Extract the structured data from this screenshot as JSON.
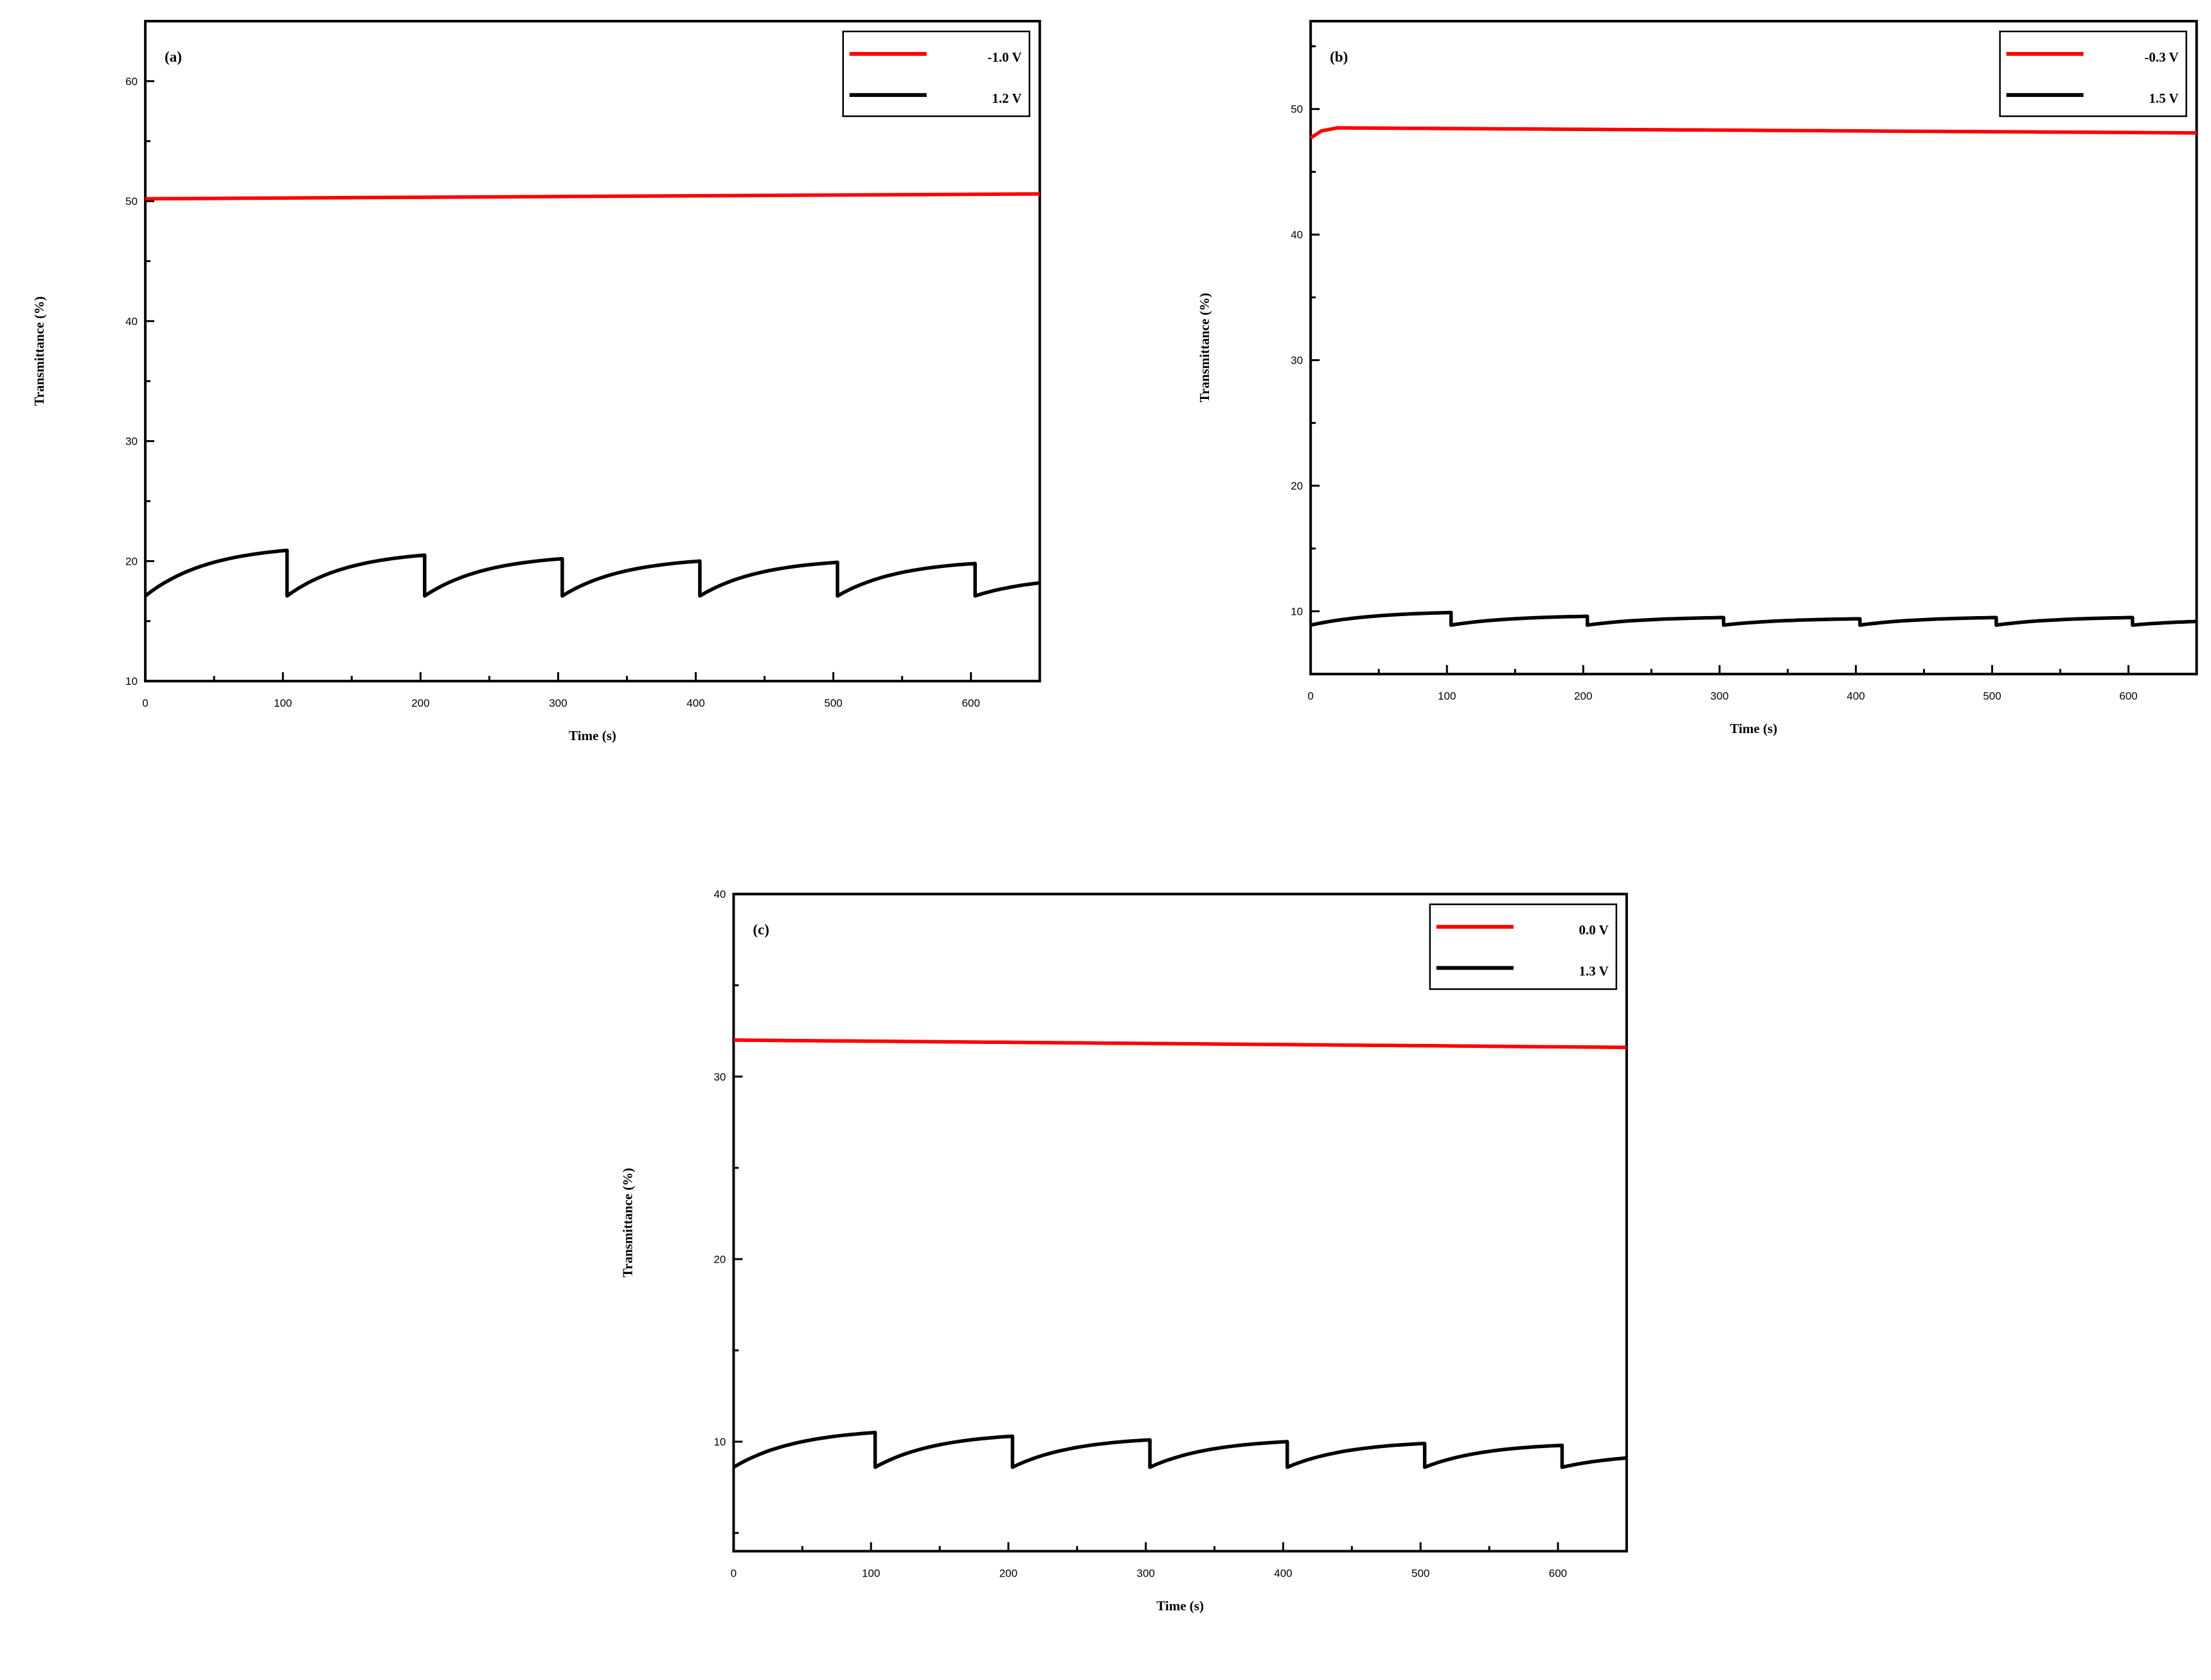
{
  "chart_data": [
    {
      "type": "line",
      "panel_label": "(a)",
      "xlabel": "Time (s)",
      "ylabel": "Transmittance (%)",
      "xlim": [
        0,
        650
      ],
      "ylim": [
        10,
        65
      ],
      "xticks": [
        "0",
        "100",
        "200",
        "300",
        "400",
        "500",
        "600"
      ],
      "yticks": [
        "10",
        "20",
        "30",
        "40",
        "50",
        "60"
      ],
      "legend_position": "top-right",
      "series": [
        {
          "name": "-1.0 V",
          "color": "#ff0000",
          "kind": "flat",
          "start": 50.2,
          "end": 50.6
        },
        {
          "name": "1.2 V",
          "color": "#000000",
          "kind": "sawtooth",
          "period": 100,
          "low": 17.1,
          "peaks": [
            20.9,
            20.5,
            20.2,
            20.0,
            19.9,
            19.8,
            18.6
          ]
        }
      ]
    },
    {
      "type": "line",
      "panel_label": "(b)",
      "xlabel": "Time (s)",
      "ylabel": "Transmittance (%)",
      "xlim": [
        0,
        650
      ],
      "ylim": [
        5,
        57
      ],
      "xticks": [
        "0",
        "100",
        "200",
        "300",
        "400",
        "500",
        "600"
      ],
      "yticks": [
        "10",
        "20",
        "30",
        "40",
        "50"
      ],
      "legend_position": "top-right",
      "series": [
        {
          "name": "-0.3 V",
          "color": "#ff0000",
          "kind": "plateau",
          "start": 47.7,
          "peak": 48.5,
          "end": 48.1
        },
        {
          "name": "1.5 V",
          "color": "#000000",
          "kind": "sawtooth",
          "period": 100,
          "low": 8.9,
          "peaks": [
            9.9,
            9.6,
            9.5,
            9.4,
            9.5,
            9.5,
            9.3
          ]
        }
      ]
    },
    {
      "type": "line",
      "panel_label": "(c)",
      "xlabel": "Time (s)",
      "ylabel": "Transmittance (%)",
      "xlim": [
        0,
        650
      ],
      "ylim": [
        4,
        40
      ],
      "xticks": [
        "0",
        "100",
        "200",
        "300",
        "400",
        "500",
        "600"
      ],
      "yticks": [
        "10",
        "20",
        "30",
        "40"
      ],
      "legend_position": "top-right",
      "series": [
        {
          "name": "0.0 V",
          "color": "#ff0000",
          "kind": "flat",
          "start": 32.0,
          "end": 31.6
        },
        {
          "name": "1.3 V",
          "color": "#000000",
          "kind": "sawtooth",
          "period": 100,
          "low": 8.6,
          "peaks": [
            10.5,
            10.3,
            10.1,
            10.0,
            9.9,
            9.8,
            9.3
          ]
        }
      ]
    }
  ]
}
